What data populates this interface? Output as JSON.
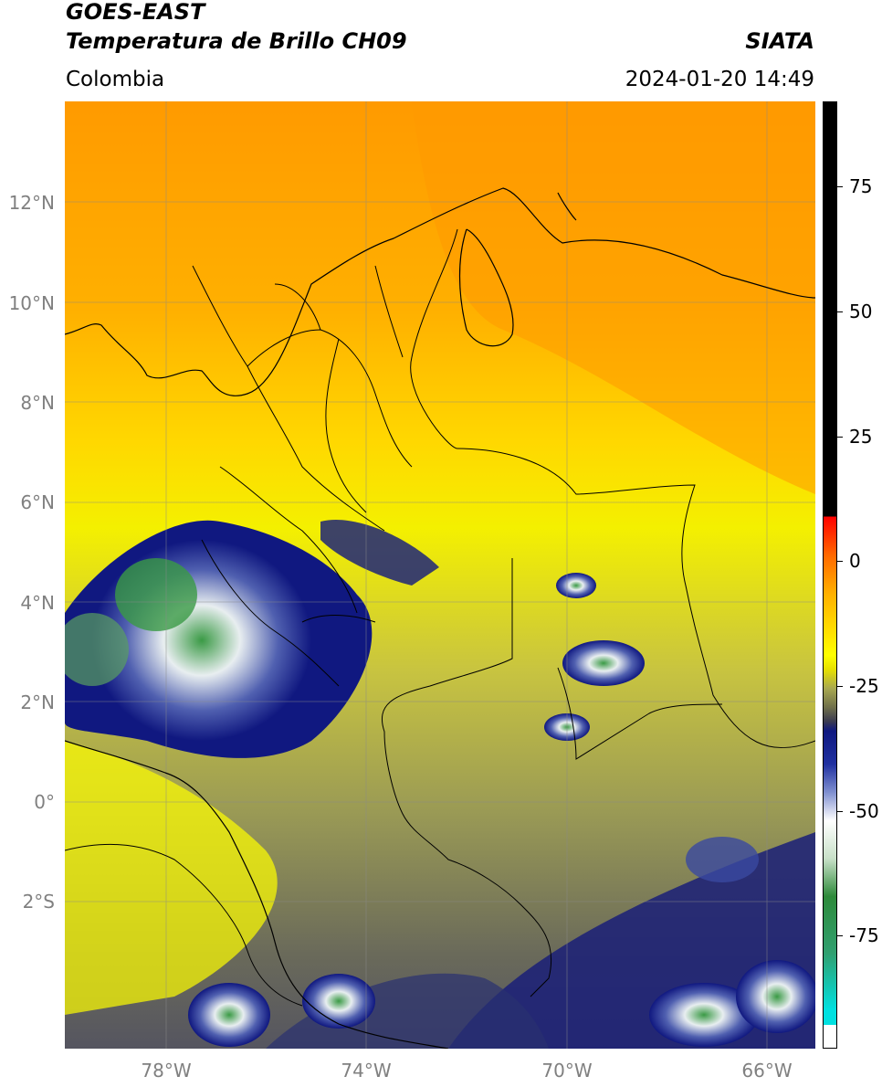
{
  "header": {
    "satellite": "GOES-EAST",
    "product": "Temperatura de Brillo CH09",
    "brand": "SIATA",
    "region": "Colombia",
    "timestamp": "2024-01-20 14:49"
  },
  "map": {
    "lat_labels": [
      "12°N",
      "10°N",
      "8°N",
      "6°N",
      "4°N",
      "2°N",
      "0°",
      "2°S"
    ],
    "lon_labels": [
      "78°W",
      "74°W",
      "70°W",
      "66°W"
    ],
    "extent": {
      "lon_min": -80,
      "lon_max": -65,
      "lat_min": -5,
      "lat_max": 14
    }
  },
  "colorbar": {
    "labels": [
      "75",
      "50",
      "25",
      "0",
      "-25",
      "-50",
      "-75"
    ],
    "range": [
      -100,
      90
    ],
    "colors": {
      "warm_black": "#000000",
      "red": "#ff2a00",
      "orange": "#ff9900",
      "yellow": "#ffff00",
      "olive": "#6f6f4a",
      "navy": "#0f1880",
      "white": "#ffffff",
      "green": "#2e8a3a",
      "cyan": "#00e0e0"
    }
  }
}
